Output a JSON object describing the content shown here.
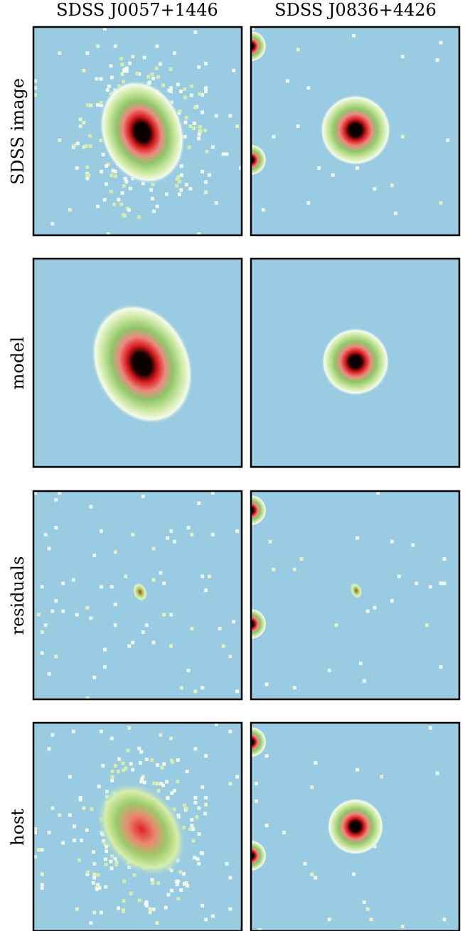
{
  "columns": [
    "SDSS J0057+1446",
    "SDSS J0836+4426"
  ],
  "rows": [
    "SDSS image",
    "model",
    "residuals",
    "host"
  ]
}
